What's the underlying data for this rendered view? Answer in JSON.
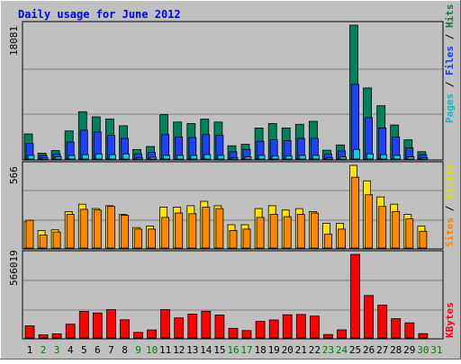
{
  "chart_data": [
    {
      "type": "bar",
      "title": "Daily usage for June 2012",
      "panel": "hits-files-pages",
      "ymax_label": "18081",
      "right_label_parts": [
        {
          "text": "Pages",
          "color": "#00c0d0"
        },
        {
          "text": " / ",
          "color": "#000000"
        },
        {
          "text": "Files",
          "color": "#0040ff"
        },
        {
          "text": " / ",
          "color": "#000000"
        },
        {
          "text": "Hits",
          "color": "#008040"
        }
      ],
      "ylim": [
        0,
        18081
      ],
      "categories": [
        "1",
        "2",
        "3",
        "4",
        "5",
        "6",
        "7",
        "8",
        "9",
        "10",
        "11",
        "12",
        "13",
        "14",
        "15",
        "16",
        "17",
        "18",
        "19",
        "20",
        "21",
        "22",
        "23",
        "24",
        "25",
        "26",
        "27",
        "28",
        "29",
        "30",
        "31"
      ],
      "series": [
        {
          "name": "Hits",
          "color": "#00805c",
          "values": [
            3400,
            800,
            1150,
            3800,
            6400,
            5700,
            5400,
            4500,
            1300,
            1700,
            6000,
            5000,
            4800,
            5400,
            5000,
            1800,
            2000,
            4200,
            4800,
            4200,
            4700,
            5100,
            1200,
            1900,
            18081,
            9600,
            7200,
            4600,
            2600,
            1000,
            0
          ]
        },
        {
          "name": "Files",
          "color": "#1f40ff",
          "values": [
            2100,
            500,
            700,
            2300,
            3900,
            3650,
            3200,
            2800,
            700,
            900,
            3300,
            3000,
            2900,
            3300,
            3200,
            1000,
            1300,
            2400,
            2600,
            2500,
            2800,
            2800,
            700,
            1100,
            10100,
            5600,
            4200,
            3000,
            1500,
            600,
            0
          ]
        },
        {
          "name": "Pages",
          "color": "#00d0f0",
          "values": [
            500,
            200,
            300,
            500,
            600,
            700,
            600,
            700,
            200,
            250,
            500,
            500,
            500,
            600,
            500,
            200,
            300,
            500,
            400,
            400,
            500,
            500,
            200,
            300,
            1300,
            700,
            600,
            500,
            300,
            200,
            0
          ]
        }
      ],
      "grid": true
    },
    {
      "type": "bar",
      "panel": "visits-sites",
      "ymax_label": "566",
      "right_label_parts": [
        {
          "text": "Sites",
          "color": "#ff8000"
        },
        {
          "text": " / ",
          "color": "#000000"
        },
        {
          "text": "Visits",
          "color": "#e0e000"
        }
      ],
      "ylim": [
        0,
        566
      ],
      "categories": [
        "1",
        "2",
        "3",
        "4",
        "5",
        "6",
        "7",
        "8",
        "9",
        "10",
        "11",
        "12",
        "13",
        "14",
        "15",
        "16",
        "17",
        "18",
        "19",
        "20",
        "21",
        "22",
        "23",
        "24",
        "25",
        "26",
        "27",
        "28",
        "29",
        "30",
        "31"
      ],
      "series": [
        {
          "name": "Visits",
          "color": "#ffe400",
          "values": [
            180,
            120,
            125,
            250,
            300,
            270,
            290,
            230,
            140,
            150,
            280,
            280,
            290,
            320,
            290,
            160,
            160,
            270,
            290,
            260,
            270,
            250,
            170,
            170,
            566,
            460,
            350,
            300,
            230,
            150,
            0
          ]
        },
        {
          "name": "Sites",
          "color": "#ff8800",
          "values": [
            190,
            90,
            110,
            230,
            265,
            260,
            285,
            225,
            130,
            130,
            210,
            240,
            235,
            280,
            270,
            120,
            130,
            210,
            230,
            215,
            230,
            240,
            95,
            130,
            485,
            365,
            285,
            250,
            200,
            115,
            0
          ]
        }
      ],
      "grid": true
    },
    {
      "type": "bar",
      "panel": "kbytes",
      "ymax_label": "566019",
      "right_label_parts": [
        {
          "text": "KBytes",
          "color": "#ff0000"
        }
      ],
      "ylim": [
        0,
        566019
      ],
      "categories": [
        "1",
        "2",
        "3",
        "4",
        "5",
        "6",
        "7",
        "8",
        "9",
        "10",
        "11",
        "12",
        "13",
        "14",
        "15",
        "16",
        "17",
        "18",
        "19",
        "20",
        "21",
        "22",
        "23",
        "24",
        "25",
        "26",
        "27",
        "28",
        "29",
        "30",
        "31"
      ],
      "series": [
        {
          "name": "KBytes",
          "color": "#ff0000",
          "values": [
            82000,
            22000,
            28000,
            93000,
            180000,
            169000,
            192000,
            123000,
            38000,
            54000,
            192000,
            136000,
            162000,
            181000,
            155000,
            65000,
            50000,
            112000,
            122000,
            157000,
            159000,
            148000,
            23000,
            55000,
            566019,
            287000,
            222000,
            130000,
            102000,
            29000,
            0
          ]
        }
      ],
      "grid": true
    }
  ],
  "x_axis": {
    "labels": [
      {
        "text": "1",
        "color": "#000000"
      },
      {
        "text": "2",
        "color": "#008000"
      },
      {
        "text": "3",
        "color": "#008000"
      },
      {
        "text": "4",
        "color": "#000000"
      },
      {
        "text": "5",
        "color": "#000000"
      },
      {
        "text": "6",
        "color": "#000000"
      },
      {
        "text": "7",
        "color": "#000000"
      },
      {
        "text": "8",
        "color": "#000000"
      },
      {
        "text": "9",
        "color": "#008000"
      },
      {
        "text": "10",
        "color": "#008000"
      },
      {
        "text": "11",
        "color": "#000000"
      },
      {
        "text": "12",
        "color": "#000000"
      },
      {
        "text": "13",
        "color": "#000000"
      },
      {
        "text": "14",
        "color": "#000000"
      },
      {
        "text": "15",
        "color": "#000000"
      },
      {
        "text": "16",
        "color": "#008000"
      },
      {
        "text": "17",
        "color": "#008000"
      },
      {
        "text": "18",
        "color": "#000000"
      },
      {
        "text": "19",
        "color": "#000000"
      },
      {
        "text": "20",
        "color": "#000000"
      },
      {
        "text": "21",
        "color": "#000000"
      },
      {
        "text": "22",
        "color": "#000000"
      },
      {
        "text": "23",
        "color": "#008000"
      },
      {
        "text": "24",
        "color": "#008000"
      },
      {
        "text": "25",
        "color": "#000000"
      },
      {
        "text": "26",
        "color": "#000000"
      },
      {
        "text": "27",
        "color": "#000000"
      },
      {
        "text": "28",
        "color": "#000000"
      },
      {
        "text": "29",
        "color": "#000000"
      },
      {
        "text": "30",
        "color": "#008000"
      },
      {
        "text": "31",
        "color": "#008000"
      }
    ]
  },
  "colors": {
    "frame_bg": "#c0c0c0",
    "title": "#0000ff",
    "gridline": "#808080"
  }
}
